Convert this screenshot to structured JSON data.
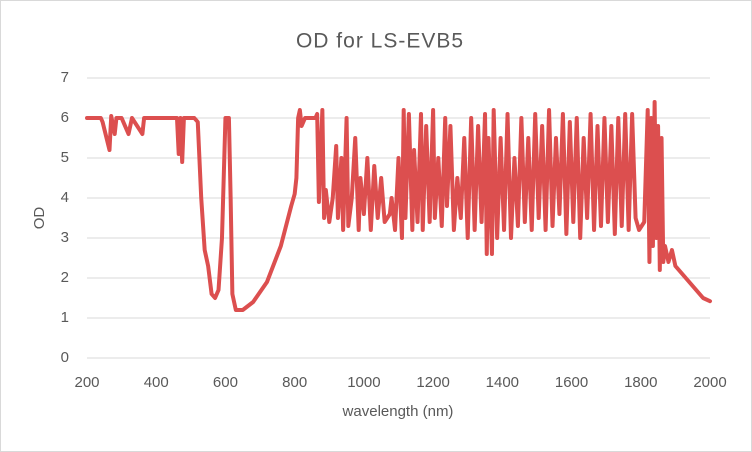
{
  "chart_data": {
    "type": "line",
    "title": "OD for LS-EVB5",
    "x_label": "wavelength (nm)",
    "y_label": "OD",
    "xlim": [
      200,
      2000
    ],
    "xticks": [
      200,
      400,
      600,
      800,
      1000,
      1200,
      1400,
      1600,
      1800,
      2000
    ],
    "ylim": [
      0,
      7
    ],
    "yticks": [
      0,
      1,
      2,
      3,
      4,
      5,
      6,
      7
    ],
    "grid": true,
    "series": [
      {
        "name": "OD",
        "color": "#dc4f4f",
        "x": [
          200,
          240,
          245,
          265,
          270,
          280,
          285,
          300,
          320,
          330,
          360,
          365,
          460,
          465,
          470,
          475,
          480,
          510,
          520,
          530,
          540,
          550,
          560,
          570,
          580,
          590,
          595,
          600,
          610,
          615,
          620,
          630,
          650,
          680,
          720,
          760,
          790,
          800,
          805,
          810,
          815,
          820,
          830,
          860,
          865,
          870,
          880,
          885,
          890,
          900,
          910,
          920,
          925,
          935,
          940,
          950,
          955,
          965,
          975,
          985,
          990,
          1000,
          1010,
          1020,
          1030,
          1040,
          1050,
          1060,
          1075,
          1080,
          1090,
          1100,
          1110,
          1115,
          1120,
          1130,
          1140,
          1145,
          1155,
          1165,
          1170,
          1180,
          1190,
          1200,
          1205,
          1215,
          1225,
          1235,
          1240,
          1250,
          1260,
          1270,
          1280,
          1290,
          1300,
          1310,
          1320,
          1330,
          1340,
          1350,
          1355,
          1360,
          1370,
          1375,
          1385,
          1395,
          1405,
          1415,
          1425,
          1435,
          1445,
          1455,
          1465,
          1475,
          1485,
          1495,
          1505,
          1515,
          1525,
          1535,
          1545,
          1555,
          1565,
          1575,
          1585,
          1595,
          1605,
          1615,
          1625,
          1635,
          1645,
          1655,
          1665,
          1675,
          1685,
          1695,
          1705,
          1715,
          1725,
          1735,
          1745,
          1755,
          1765,
          1775,
          1785,
          1795,
          1810,
          1820,
          1825,
          1830,
          1835,
          1840,
          1845,
          1850,
          1855,
          1860,
          1865,
          1870,
          1880,
          1890,
          1900,
          1920,
          1950,
          1980,
          2000
        ],
        "values": [
          6.0,
          6.0,
          5.9,
          5.2,
          6.05,
          5.6,
          6.0,
          6.0,
          5.6,
          6.0,
          5.6,
          6.0,
          6.0,
          5.1,
          6.0,
          4.9,
          6.0,
          6.0,
          5.9,
          4.0,
          2.7,
          2.3,
          1.6,
          1.5,
          1.7,
          3.0,
          4.5,
          6.0,
          6.0,
          4.0,
          1.6,
          1.2,
          1.2,
          1.4,
          1.9,
          2.8,
          3.8,
          4.1,
          4.5,
          6.0,
          6.2,
          5.8,
          6.0,
          6.0,
          6.1,
          3.9,
          6.2,
          3.5,
          4.2,
          3.4,
          4.0,
          5.3,
          3.5,
          5.0,
          3.2,
          6.0,
          3.3,
          4.0,
          5.5,
          3.2,
          4.5,
          3.6,
          5.0,
          3.2,
          4.8,
          3.5,
          4.5,
          3.4,
          3.6,
          4.0,
          3.2,
          5.0,
          3.0,
          6.2,
          3.5,
          6.1,
          3.2,
          5.2,
          3.4,
          6.1,
          3.2,
          5.8,
          3.4,
          6.2,
          3.5,
          5.0,
          3.3,
          6.0,
          3.8,
          5.8,
          3.2,
          4.5,
          3.5,
          5.5,
          3.0,
          6.0,
          3.2,
          5.8,
          3.4,
          6.1,
          2.6,
          5.5,
          2.6,
          6.2,
          3.0,
          5.5,
          3.2,
          6.1,
          3.0,
          5.0,
          3.3,
          6.0,
          3.4,
          5.5,
          3.2,
          6.1,
          3.5,
          5.8,
          3.2,
          6.2,
          3.3,
          5.5,
          3.6,
          6.1,
          3.1,
          5.9,
          3.4,
          6.0,
          3.0,
          5.5,
          3.5,
          6.1,
          3.2,
          5.8,
          3.3,
          6.0,
          3.4,
          5.8,
          3.1,
          6.0,
          3.3,
          6.1,
          3.2,
          6.1,
          3.5,
          3.2,
          3.4,
          6.2,
          2.4,
          6.0,
          2.8,
          6.4,
          3.0,
          5.8,
          2.2,
          5.5,
          2.4,
          2.8,
          2.4,
          2.7,
          2.3,
          2.1,
          1.8,
          1.5,
          1.42
        ]
      }
    ]
  }
}
